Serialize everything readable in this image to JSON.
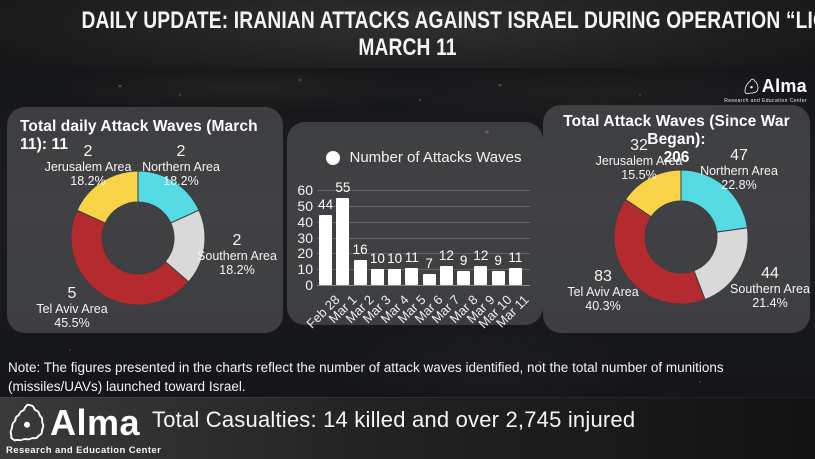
{
  "header": {
    "title_line1": "DAILY UPDATE: IRANIAN ATTACKS AGAINST ISRAEL DURING OPERATION “LION’S ROAR” –",
    "title_line2": "MARCH 11"
  },
  "brand": {
    "name": "Alma",
    "tagline": "Research and Education Center"
  },
  "note": "Note: The figures presented in the charts reflect the number of attack waves identified, not the total number of munitions (missiles/UAVs) launched toward Israel.",
  "footer": {
    "casualties": "Total Casualties: 14 killed and over 2,745 injured"
  },
  "colors": {
    "northern": "#55dbe3",
    "southern": "#d9d9d9",
    "tel_aviv": "#b52a2e",
    "jerusalem": "#f8d348",
    "bar": "#ffffff"
  },
  "chart_data": [
    {
      "type": "pie",
      "subtype": "donut",
      "title": "Total daily Attack Waves (March 11): 11",
      "total": 11,
      "segments": [
        {
          "label": "Northern Area",
          "value": 2,
          "pct": "18.2%",
          "color": "#55dbe3"
        },
        {
          "label": "Southern Area",
          "value": 2,
          "pct": "18.2%",
          "color": "#d9d9d9"
        },
        {
          "label": "Tel Aviv Area",
          "value": 5,
          "pct": "45.5%",
          "color": "#b52a2e"
        },
        {
          "label": "Jerusalem Area",
          "value": 2,
          "pct": "18.2%",
          "color": "#f8d348"
        }
      ],
      "start_angle_deg": 0,
      "clockwise": true
    },
    {
      "type": "bar",
      "legend": "Number of Attacks Waves",
      "categories": [
        "Feb 28",
        "Mar 1",
        "Mar 2",
        "Mar 3",
        "Mar 4",
        "Mar 5",
        "Mar 6",
        "Mar 7",
        "Mar 8",
        "Mar 9",
        "Mar 10",
        "Mar 11"
      ],
      "values": [
        44,
        55,
        16,
        10,
        10,
        11,
        7,
        12,
        9,
        12,
        9,
        11
      ],
      "ylim": [
        0,
        60
      ],
      "yticks": [
        0,
        10,
        20,
        30,
        40,
        50,
        60
      ],
      "bar_color": "#ffffff",
      "grid": true,
      "legend_position": "top"
    },
    {
      "type": "pie",
      "subtype": "donut",
      "title": "Total Attack Waves (Since War Began):",
      "total": 206,
      "segments": [
        {
          "label": "Northern Area",
          "value": 47,
          "pct": "22.8%",
          "color": "#55dbe3"
        },
        {
          "label": "Southern Area",
          "value": 44,
          "pct": "21.4%",
          "color": "#d9d9d9"
        },
        {
          "label": "Tel Aviv Area",
          "value": 83,
          "pct": "40.3%",
          "color": "#b52a2e"
        },
        {
          "label": "Jerusalem Area",
          "value": 32,
          "pct": "15.5%",
          "color": "#f8d348"
        }
      ],
      "start_angle_deg": 0,
      "clockwise": true
    }
  ]
}
